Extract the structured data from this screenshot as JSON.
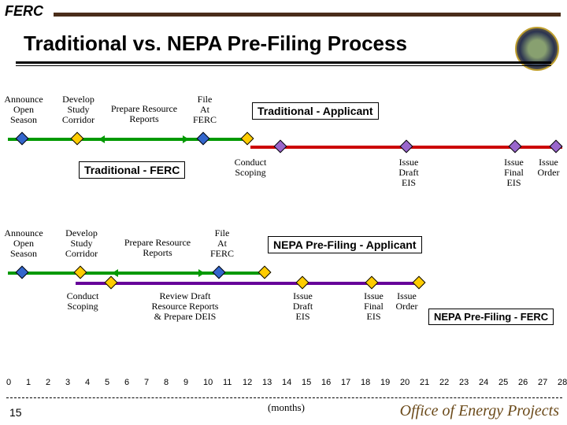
{
  "header": {
    "ferc": "FERC",
    "title": "Traditional vs. NEPA Pre-Filing Process"
  },
  "section1": {
    "labels": {
      "announce": "Announce\nOpen\nSeason",
      "develop": "Develop\nStudy\nCorridor",
      "prepare": "Prepare Resource\nReports",
      "file": "File\nAt\nFERC",
      "tradApp": "Traditional - Applicant",
      "tradFerc": "Traditional - FERC",
      "conduct": "Conduct\nScoping",
      "issueDraft": "Issue\nDraft\nEIS",
      "issueFinal": "Issue\nFinal\nEIS",
      "issueOrder": "Issue\nOrder"
    }
  },
  "section2": {
    "labels": {
      "announce": "Announce\nOpen\nSeason",
      "develop": "Develop\nStudy\nCorridor",
      "prepare": "Prepare Resource\nReports",
      "file": "File\nAt\nFERC",
      "nepaApp": "NEPA Pre-Filing - Applicant",
      "conduct": "Conduct\nScoping",
      "review": "Review Draft\nResource Reports\n& Prepare DEIS",
      "issueDraft": "Issue\nDraft\nEIS",
      "issueFinal": "Issue\nFinal\nEIS",
      "issueOrder": "Issue\nOrder",
      "nepaFerc": "NEPA Pre-Filing - FERC"
    }
  },
  "axis": [
    "0",
    "1",
    "2",
    "3",
    "4",
    "5",
    "6",
    "7",
    "8",
    "9",
    "10",
    "11",
    "12",
    "13",
    "14",
    "15",
    "16",
    "17",
    "18",
    "19",
    "20",
    "21",
    "22",
    "23",
    "24",
    "25",
    "26",
    "27",
    "28"
  ],
  "months": "(months)",
  "footer": "Office of Energy Projects",
  "pagenum": "15",
  "colors": {
    "green": "#009900",
    "red": "#cc0000",
    "purple": "#660099"
  }
}
